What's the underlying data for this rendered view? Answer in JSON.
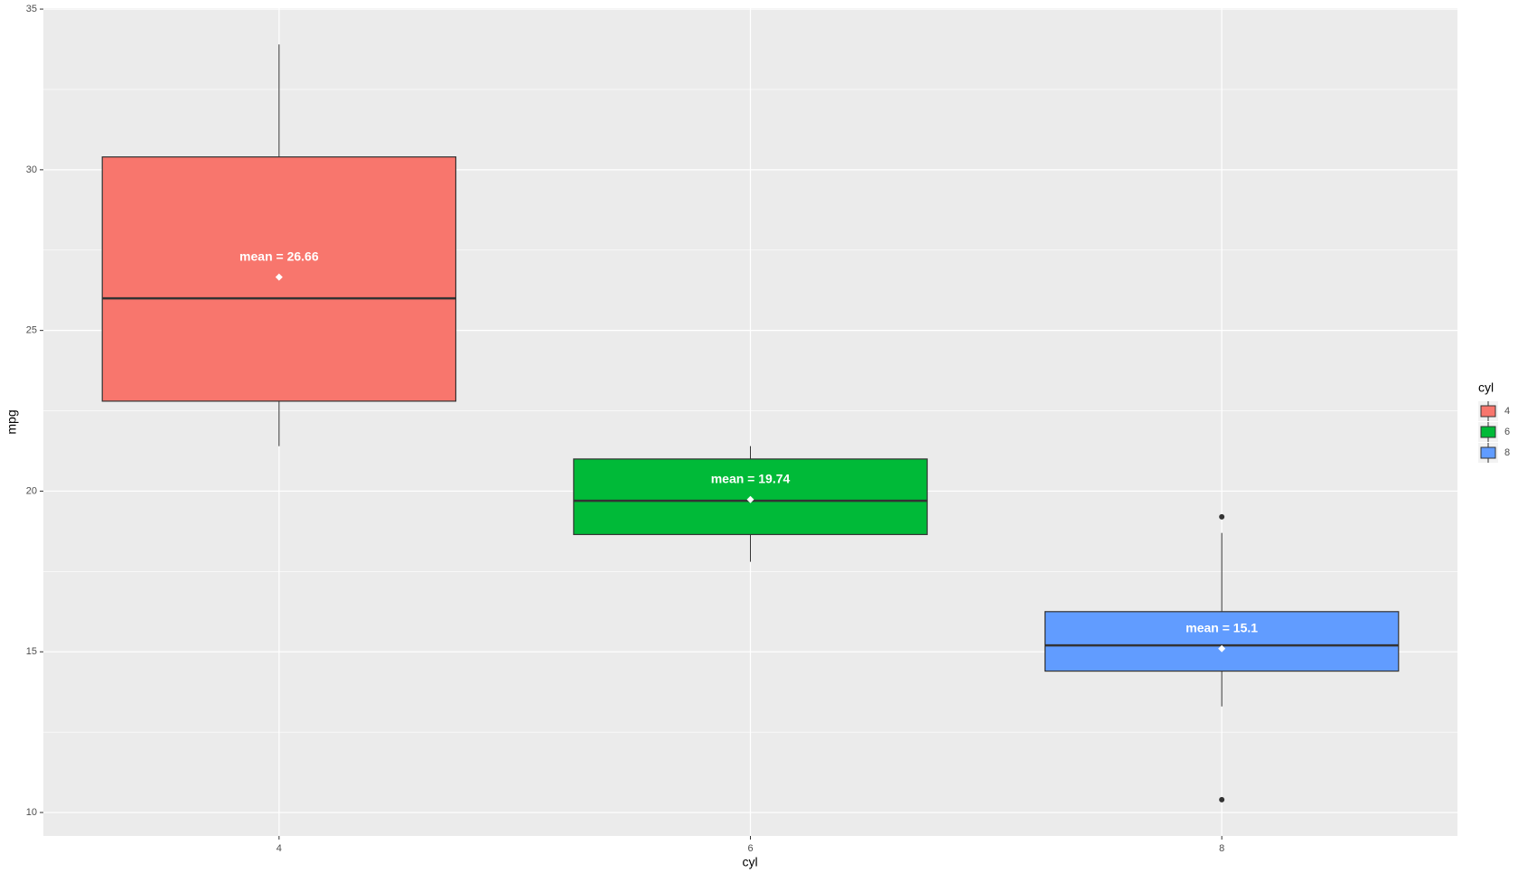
{
  "chart_data": {
    "type": "boxplot",
    "x_label": "cyl",
    "y_label": "mpg",
    "legend_title": "cyl",
    "categories": [
      "4",
      "6",
      "8"
    ],
    "colors": [
      "#F8766D",
      "#00BA38",
      "#619CFF"
    ],
    "whisker_low": [
      21.4,
      17.8,
      13.3
    ],
    "q1": [
      22.8,
      18.65,
      14.4
    ],
    "median": [
      26,
      19.7,
      15.2
    ],
    "q3": [
      30.4,
      21,
      16.25
    ],
    "whisker_high": [
      33.9,
      21.4,
      18.7
    ],
    "outliers": [
      [],
      [],
      [
        10.4,
        19.2
      ]
    ],
    "mean": [
      26.66,
      19.74,
      15.1
    ],
    "value_labels": [
      "mean =  26.66",
      "mean =  19.74",
      "mean =  15.1"
    ],
    "ylim": [
      9.27,
      35.03
    ],
    "yticks": [
      10,
      15,
      20,
      25,
      30,
      35
    ],
    "grid": true
  }
}
